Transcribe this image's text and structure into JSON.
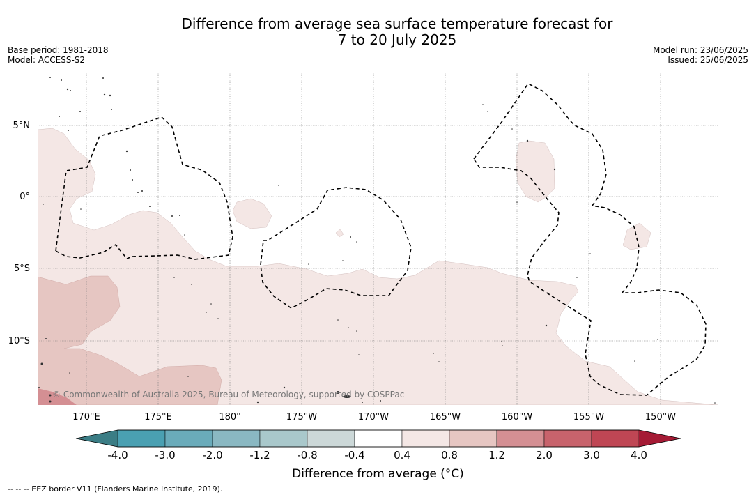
{
  "title_line1": "Difference from average sea surface temperature forecast for",
  "title_line2": "7 to 20 July 2025",
  "meta_left": [
    "Base period: 1981-2018",
    "Model: ACCESS-S2"
  ],
  "meta_right": [
    "Model run: 23/06/2025",
    "Issued: 25/06/2025"
  ],
  "map": {
    "lat_labels": [
      "5°N",
      "0°",
      "5°S",
      "10°S"
    ],
    "lon_labels": [
      "170°E",
      "175°E",
      "180°",
      "175°W",
      "170°W",
      "165°W",
      "160°W",
      "155°W",
      "150°W"
    ],
    "copyright": "© Commonwealth of Australia 2025, Bureau of Meteorology, supported by COSPPac",
    "colors": {
      "anom_0_4_0_8": "#f4e7e5",
      "anom_0_8_1_2": "#e6c6c2",
      "anom_1_2_2_0": "#d48f93"
    }
  },
  "colorbar": {
    "ticks": [
      "-4.0",
      "-3.0",
      "-2.0",
      "-1.2",
      "-0.8",
      "-0.4",
      "0.4",
      "0.8",
      "1.2",
      "2.0",
      "3.0",
      "4.0"
    ],
    "colors": [
      "#3b7d85",
      "#4aa0b2",
      "#6aabba",
      "#8ab8c2",
      "#a9c8cb",
      "#ccd8d8",
      "#ffffff",
      "#f4e7e5",
      "#e6c6c2",
      "#d48f93",
      "#c8636c",
      "#bf4654",
      "#a51b35"
    ],
    "label": "Difference from average (°C)"
  },
  "footnote": "-- -- -- EEZ border V11 (Flanders Marine Institute, 2019)."
}
